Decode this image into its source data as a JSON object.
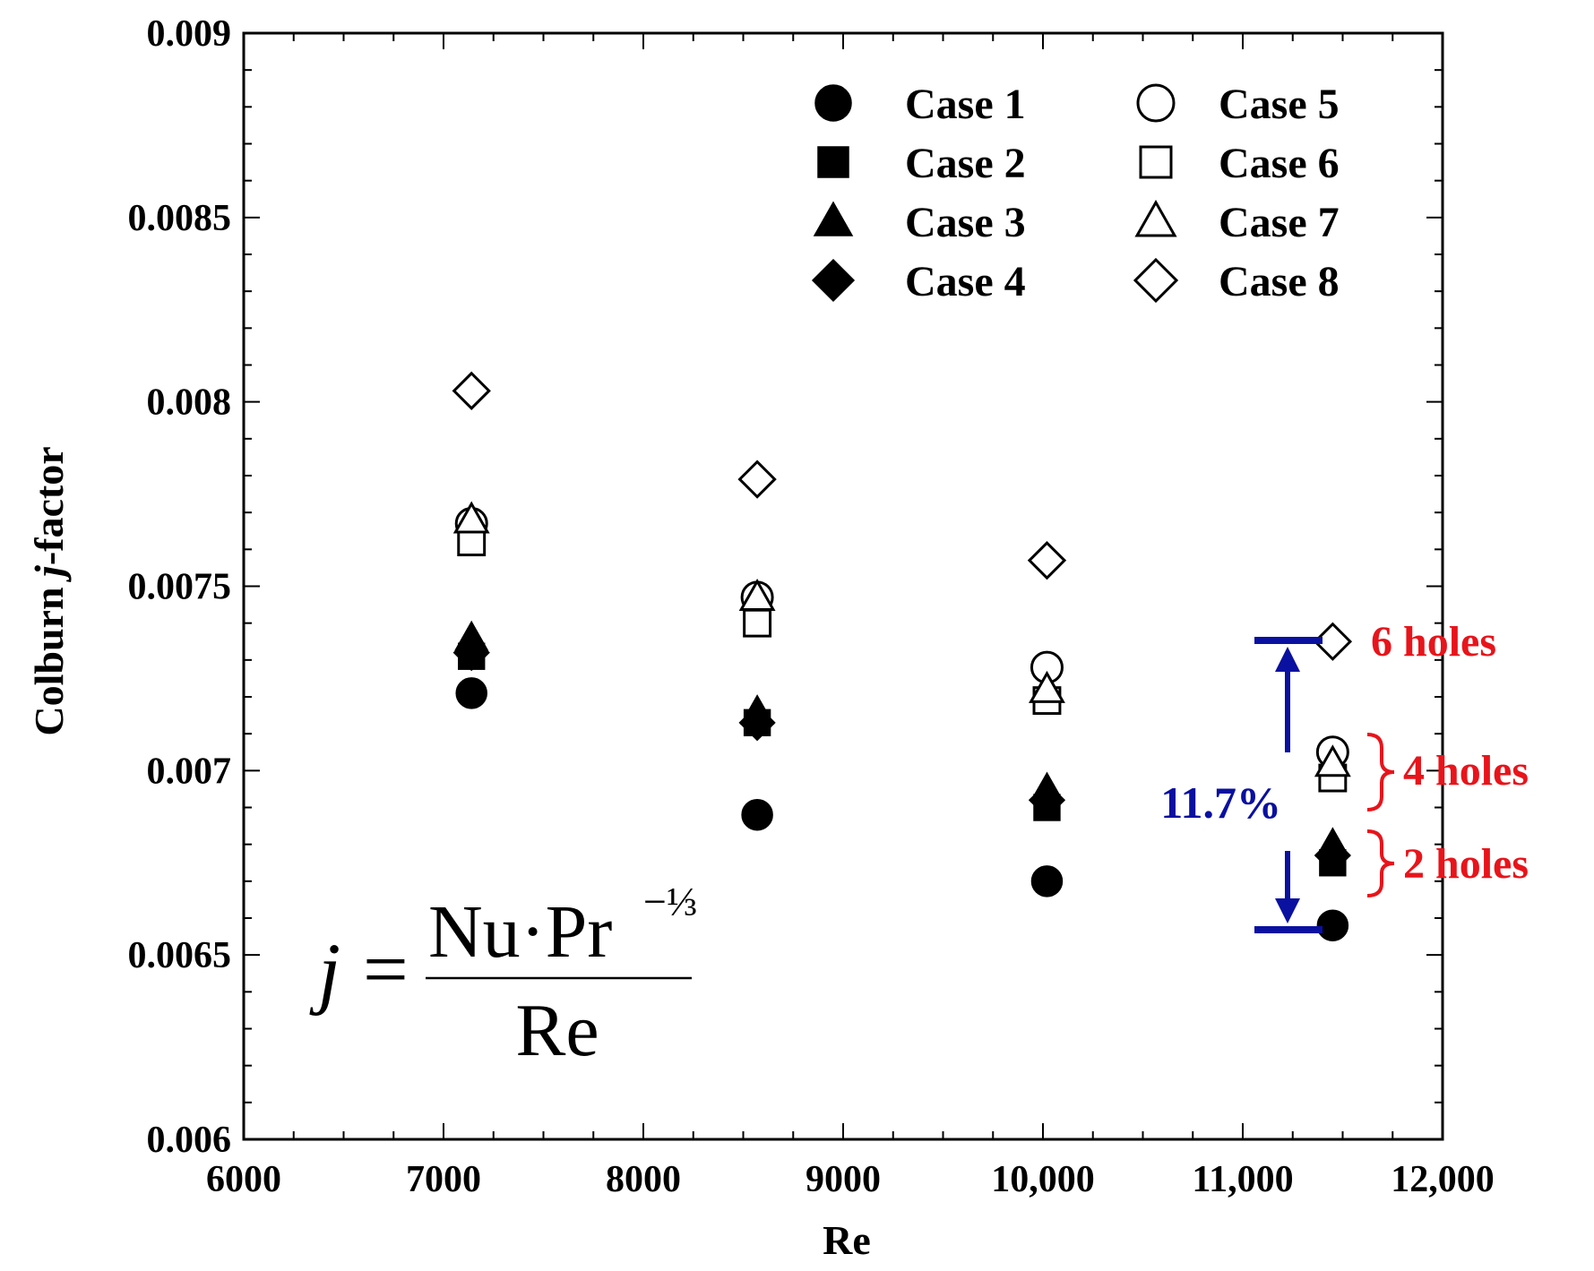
{
  "chart_data": {
    "type": "scatter",
    "title": "",
    "xlabel": "Re",
    "ylabel_pre": "Colburn ",
    "ylabel_italic": "j",
    "ylabel_post": "-factor",
    "xlim": [
      6000,
      12000
    ],
    "ylim": [
      0.006,
      0.009
    ],
    "x_ticks": [
      6000,
      7000,
      8000,
      9000,
      10000,
      11000,
      12000
    ],
    "x_tick_labels": [
      "6000",
      "7000",
      "8000",
      "9000",
      "10,000",
      "11,000",
      "12,000"
    ],
    "y_ticks": [
      0.006,
      0.0065,
      0.007,
      0.0075,
      0.008,
      0.0085,
      0.009
    ],
    "y_tick_labels": [
      "0.006",
      "0.0065",
      "0.007",
      "0.0075",
      "0.008",
      "0.0085",
      "0.009"
    ],
    "x": [
      7140,
      8570,
      10020,
      11450
    ],
    "series": [
      {
        "name": "Case 1",
        "marker": "circle",
        "filled": true,
        "values": [
          0.00721,
          0.00688,
          0.0067,
          0.00658
        ]
      },
      {
        "name": "Case 2",
        "marker": "square",
        "filled": true,
        "values": [
          0.00731,
          0.00713,
          0.0069,
          0.00675
        ]
      },
      {
        "name": "Case 3",
        "marker": "triangle",
        "filled": true,
        "values": [
          0.00736,
          0.00716,
          0.00695,
          0.0068
        ]
      },
      {
        "name": "Case 4",
        "marker": "diamond",
        "filled": true,
        "values": [
          0.00732,
          0.00713,
          0.00692,
          0.00677
        ]
      },
      {
        "name": "Case 5",
        "marker": "circle",
        "filled": false,
        "values": [
          0.00767,
          0.00747,
          0.00728,
          0.00705
        ]
      },
      {
        "name": "Case 6",
        "marker": "square",
        "filled": false,
        "values": [
          0.00762,
          0.0074,
          0.00719,
          0.00698
        ]
      },
      {
        "name": "Case 7",
        "marker": "triangle",
        "filled": false,
        "values": [
          0.00768,
          0.00747,
          0.00722,
          0.00702
        ]
      },
      {
        "name": "Case 8",
        "marker": "diamond",
        "filled": false,
        "values": [
          0.00803,
          0.00779,
          0.00757,
          0.00735
        ]
      }
    ],
    "legend_position": "top-right",
    "annotations": {
      "six_holes": "6 holes",
      "four_holes": "4 holes",
      "two_holes": "2 holes",
      "percent": "11.7%",
      "formula_lhs": "j",
      "formula_eq": "=",
      "formula_num": "Nu·Pr",
      "formula_exp": "−⅓",
      "formula_den": "Re"
    }
  },
  "colors": {
    "axis": "#000000",
    "annotation_red": "#e8141b",
    "annotation_blue": "#0a10a0"
  }
}
